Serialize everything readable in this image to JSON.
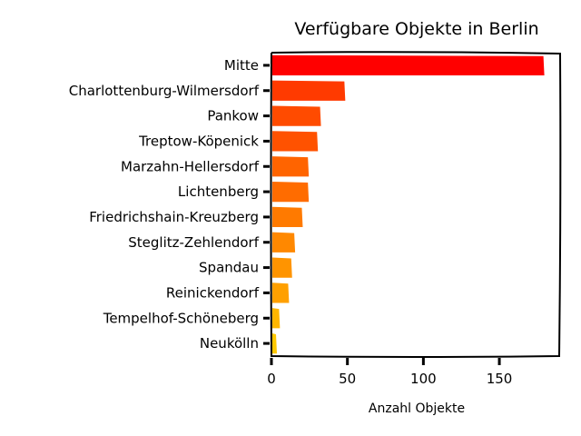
{
  "chart_data": {
    "type": "bar",
    "orientation": "horizontal",
    "title": "Verfügbare Objekte in Berlin",
    "xlabel": "Anzahl Objekte",
    "ylabel": "",
    "xlim": [
      0,
      190
    ],
    "xticks": [
      0,
      50,
      100,
      150
    ],
    "grid": false,
    "legend": "none",
    "categories": [
      "Mitte",
      "Charlottenburg-Wilmersdorf",
      "Pankow",
      "Treptow-Köpenick",
      "Marzahn-Hellersdorf",
      "Lichtenberg",
      "Friedrichshain-Kreuzberg",
      "Steglitz-Zehlendorf",
      "Spandau",
      "Reinickendorf",
      "Tempelhof-Schöneberg",
      "Neukölln"
    ],
    "values": [
      179,
      48,
      32,
      30,
      24,
      24,
      20,
      15,
      13,
      11,
      5,
      3
    ],
    "colors": [
      "#ff0000",
      "#ff3a00",
      "#ff4b00",
      "#ff5200",
      "#ff6400",
      "#ff6c00",
      "#ff7a00",
      "#ff8800",
      "#ff9400",
      "#ffa000",
      "#ffb600",
      "#ffc800"
    ]
  }
}
